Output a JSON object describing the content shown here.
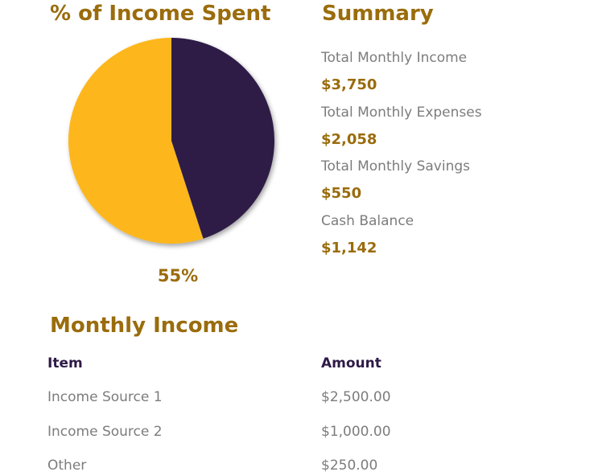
{
  "chart_data": {
    "type": "pie",
    "title": "% of Income Spent",
    "values": [
      55,
      45
    ],
    "value_labels": [
      "55%",
      null
    ],
    "colors": [
      "#fdb71c",
      "#2e1a47"
    ]
  },
  "summary": {
    "title": "Summary",
    "items": [
      {
        "label": "Total Monthly Income",
        "value": "$3,750"
      },
      {
        "label": "Total Monthly Expenses",
        "value": "$2,058"
      },
      {
        "label": "Total Monthly Savings",
        "value": "$550"
      },
      {
        "label": "Cash Balance",
        "value": "$1,142"
      }
    ]
  },
  "monthly_income": {
    "title": "Monthly Income",
    "header": [
      "Item",
      "Amount"
    ],
    "rows": [
      [
        "Income Source 1",
        "$2,500.00"
      ],
      [
        "Income Source 2",
        "$1,000.00"
      ],
      [
        "Other",
        "$250.00"
      ]
    ]
  }
}
